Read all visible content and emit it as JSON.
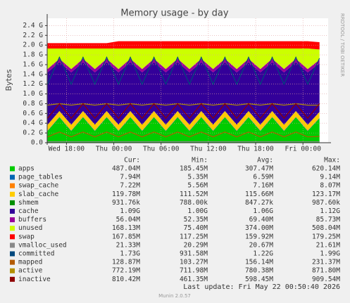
{
  "chart_data": {
    "type": "munin",
    "title": "Memory usage - by day",
    "y_label": "Bytes",
    "side_text": "RRDTOOL / TOBI OETIKER",
    "last_update": "Last update: Fri May 22 00:50:40 2026",
    "version": "Munin 2.0.57",
    "x": [
      -2.4,
      -0.9,
      0.6,
      2.1,
      3.6,
      5.1,
      6.6,
      8.1,
      9.6,
      11.1,
      12.6,
      14.1,
      15.6,
      17.1,
      18.6,
      20.1,
      21.6,
      23.1,
      24.6,
      26.1,
      27.6,
      29.1,
      30.6,
      32.1
    ],
    "xlim": [
      -2.45,
      33.2
    ],
    "xticks": [
      {
        "value": 0,
        "label": "Wed 18:00"
      },
      {
        "value": 6,
        "label": "Thu 00:00"
      },
      {
        "value": 12,
        "label": "Thu 06:00"
      },
      {
        "value": 18,
        "label": "Thu 12:00"
      },
      {
        "value": 24,
        "label": "Thu 18:00"
      },
      {
        "value": 30,
        "label": "Fri 00:00"
      }
    ],
    "ylim": [
      0,
      2.55
    ],
    "yticks": [
      {
        "value": 0,
        "label": "0.0"
      },
      {
        "value": 0.2,
        "label": "0.2 G"
      },
      {
        "value": 0.4,
        "label": "0.4 G"
      },
      {
        "value": 0.6,
        "label": "0.6 G"
      },
      {
        "value": 0.8,
        "label": "0.8 G"
      },
      {
        "value": 1.0,
        "label": "1.0 G"
      },
      {
        "value": 1.2,
        "label": "1.2 G"
      },
      {
        "value": 1.4,
        "label": "1.4 G"
      },
      {
        "value": 1.6,
        "label": "1.6 G"
      },
      {
        "value": 1.8,
        "label": "1.8 G"
      },
      {
        "value": 2.0,
        "label": "2.0 G"
      },
      {
        "value": 2.2,
        "label": "2.2 G"
      },
      {
        "value": 2.4,
        "label": "2.4 G"
      }
    ],
    "grid": true,
    "stats_header": [
      "Cur:",
      "Min:",
      "Avg:",
      "Max:"
    ],
    "series": [
      {
        "name": "apps",
        "color": "#00cc00",
        "draw": "area",
        "stats": [
          "487.04M",
          "185.45M",
          "307.47M",
          "620.14M"
        ],
        "values": [
          0.24,
          0.52,
          0.24,
          0.52,
          0.24,
          0.52,
          0.24,
          0.52,
          0.24,
          0.52,
          0.24,
          0.52,
          0.24,
          0.52,
          0.24,
          0.52,
          0.24,
          0.52,
          0.24,
          0.52,
          0.24,
          0.52,
          0.24,
          0.5
        ]
      },
      {
        "name": "page_tables",
        "color": "#0066b3",
        "draw": "area",
        "stats": [
          "7.94M",
          "5.35M",
          "6.59M",
          "9.14M"
        ],
        "values": [
          0.007,
          0.007,
          0.007,
          0.007,
          0.007,
          0.007,
          0.007,
          0.007,
          0.007,
          0.007,
          0.007,
          0.007,
          0.007,
          0.007,
          0.007,
          0.007,
          0.007,
          0.007,
          0.007,
          0.007,
          0.007,
          0.007,
          0.007,
          0.007
        ]
      },
      {
        "name": "swap_cache",
        "color": "#ff8000",
        "draw": "area",
        "stats": [
          "7.22M",
          "5.56M",
          "7.16M",
          "8.07M"
        ],
        "values": [
          0.007,
          0.007,
          0.007,
          0.007,
          0.007,
          0.007,
          0.007,
          0.007,
          0.007,
          0.007,
          0.007,
          0.007,
          0.007,
          0.007,
          0.007,
          0.007,
          0.007,
          0.007,
          0.007,
          0.007,
          0.007,
          0.007,
          0.007,
          0.007
        ]
      },
      {
        "name": "slab_cache",
        "color": "#ffcc00",
        "draw": "area",
        "stats": [
          "119.78M",
          "111.52M",
          "115.66M",
          "123.17M"
        ],
        "values": [
          0.115,
          0.115,
          0.115,
          0.115,
          0.115,
          0.115,
          0.115,
          0.115,
          0.115,
          0.115,
          0.115,
          0.115,
          0.115,
          0.115,
          0.115,
          0.115,
          0.115,
          0.115,
          0.115,
          0.115,
          0.115,
          0.115,
          0.115,
          0.115
        ]
      },
      {
        "name": "shmem",
        "color": "#008f00",
        "draw": "area",
        "stats": [
          "931.76k",
          "788.00k",
          "847.27k",
          "987.60k"
        ],
        "values": [
          0.001,
          0.001,
          0.001,
          0.001,
          0.001,
          0.001,
          0.001,
          0.001,
          0.001,
          0.001,
          0.001,
          0.001,
          0.001,
          0.001,
          0.001,
          0.001,
          0.001,
          0.001,
          0.001,
          0.001,
          0.001,
          0.001,
          0.001,
          0.001
        ]
      },
      {
        "name": "cache",
        "color": "#330099",
        "draw": "area",
        "stats": [
          "1.09G",
          "1.00G",
          "1.06G",
          "1.12G"
        ],
        "values": [
          1.07,
          1.0,
          1.07,
          1.0,
          1.07,
          1.0,
          1.07,
          1.0,
          1.07,
          1.0,
          1.07,
          1.0,
          1.07,
          1.0,
          1.07,
          1.0,
          1.07,
          1.0,
          1.07,
          1.0,
          1.07,
          1.0,
          1.07,
          1.0
        ]
      },
      {
        "name": "buffers",
        "color": "#990099",
        "draw": "area",
        "stats": [
          "56.04M",
          "52.35M",
          "69.40M",
          "85.73M"
        ],
        "values": [
          0.07,
          0.07,
          0.07,
          0.07,
          0.07,
          0.07,
          0.07,
          0.07,
          0.07,
          0.07,
          0.07,
          0.07,
          0.07,
          0.07,
          0.07,
          0.07,
          0.07,
          0.07,
          0.07,
          0.07,
          0.07,
          0.07,
          0.07,
          0.07
        ]
      },
      {
        "name": "unused",
        "color": "#ccff00",
        "draw": "area",
        "stats": [
          "168.13M",
          "75.40M",
          "374.00M",
          "508.04M"
        ],
        "values": [
          0.42,
          0.21,
          0.42,
          0.21,
          0.42,
          0.21,
          0.42,
          0.21,
          0.42,
          0.21,
          0.42,
          0.21,
          0.42,
          0.21,
          0.42,
          0.21,
          0.42,
          0.21,
          0.42,
          0.21,
          0.42,
          0.21,
          0.42,
          0.21
        ]
      },
      {
        "name": "swap",
        "color": "#ff0000",
        "draw": "area",
        "stats": [
          "167.85M",
          "117.25M",
          "159.92M",
          "179.25M"
        ],
        "values": [
          0.11,
          0.11,
          0.11,
          0.11,
          0.11,
          0.11,
          0.15,
          0.15,
          0.15,
          0.15,
          0.15,
          0.15,
          0.15,
          0.15,
          0.15,
          0.15,
          0.15,
          0.15,
          0.15,
          0.15,
          0.15,
          0.15,
          0.15,
          0.15
        ]
      },
      {
        "name": "vmalloc_used",
        "color": "#888888",
        "draw": "line",
        "stats": [
          "21.33M",
          "20.29M",
          "20.67M",
          "21.61M"
        ],
        "values": [
          0.021,
          0.021,
          0.021,
          0.021,
          0.021,
          0.021,
          0.021,
          0.021,
          0.021,
          0.021,
          0.021,
          0.021,
          0.021,
          0.021,
          0.021,
          0.021,
          0.021,
          0.021,
          0.021,
          0.021,
          0.021,
          0.021,
          0.021,
          0.021
        ]
      },
      {
        "name": "committed",
        "color": "#00487d",
        "draw": "line",
        "stats": [
          "1.73G",
          "931.58M",
          "1.22G",
          "1.99G"
        ],
        "values": [
          1.2,
          1.75,
          1.2,
          1.75,
          1.2,
          1.75,
          1.2,
          1.75,
          1.2,
          1.75,
          1.2,
          1.75,
          1.2,
          1.75,
          1.2,
          1.75,
          1.2,
          1.75,
          1.2,
          1.75,
          1.2,
          1.75,
          1.2,
          1.73
        ]
      },
      {
        "name": "mapped",
        "color": "#b35a00",
        "draw": "line",
        "stats": [
          "128.87M",
          "103.27M",
          "156.14M",
          "231.37M"
        ],
        "values": [
          0.12,
          0.22,
          0.12,
          0.22,
          0.12,
          0.22,
          0.12,
          0.22,
          0.12,
          0.22,
          0.12,
          0.22,
          0.12,
          0.22,
          0.12,
          0.22,
          0.12,
          0.22,
          0.12,
          0.22,
          0.12,
          0.22,
          0.12,
          0.13
        ]
      },
      {
        "name": "active",
        "color": "#b38f00",
        "draw": "line",
        "stats": [
          "772.19M",
          "711.98M",
          "780.38M",
          "871.80M"
        ],
        "values": [
          0.77,
          0.8,
          0.77,
          0.8,
          0.77,
          0.8,
          0.77,
          0.8,
          0.77,
          0.8,
          0.77,
          0.8,
          0.77,
          0.8,
          0.77,
          0.8,
          0.77,
          0.8,
          0.77,
          0.8,
          0.77,
          0.8,
          0.77,
          0.77
        ]
      },
      {
        "name": "inactive",
        "color": "#8f0000",
        "draw": "line",
        "stats": [
          "810.42M",
          "461.35M",
          "598.45M",
          "909.54M"
        ],
        "values": [
          0.5,
          0.8,
          0.5,
          0.8,
          0.5,
          0.8,
          0.5,
          0.8,
          0.5,
          0.8,
          0.5,
          0.8,
          0.5,
          0.8,
          0.5,
          0.8,
          0.5,
          0.8,
          0.5,
          0.8,
          0.5,
          0.8,
          0.5,
          0.8
        ]
      }
    ]
  }
}
